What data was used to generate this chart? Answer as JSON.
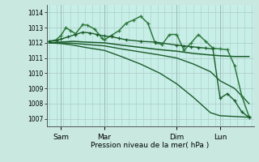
{
  "xlabel": "Pression niveau de la mer( hPa )",
  "bg_color": "#c8e8e0",
  "plot_bg_color": "#c8eee8",
  "grid_color": "#aaccc4",
  "ylim": [
    1006.5,
    1014.5
  ],
  "xlim": [
    -1,
    85
  ],
  "yticks": [
    1007,
    1008,
    1009,
    1010,
    1011,
    1012,
    1013,
    1014
  ],
  "xtick_positions": [
    5,
    23,
    53,
    71
  ],
  "xtick_labels": [
    "Sam",
    "Mar",
    "Dim",
    "Lun"
  ],
  "vline_positions": [
    5,
    23,
    53,
    71
  ],
  "series": [
    {
      "x": [
        0,
        5,
        10,
        15,
        23,
        30,
        38,
        46,
        53,
        60,
        67,
        71,
        77,
        83
      ],
      "y": [
        1012.0,
        1012.05,
        1012.1,
        1012.05,
        1012.0,
        1011.85,
        1011.7,
        1011.55,
        1011.45,
        1011.3,
        1011.2,
        1011.15,
        1011.1,
        1011.1
      ],
      "color": "#1a5c2a",
      "lw": 1.1,
      "marker": null
    },
    {
      "x": [
        0,
        5,
        10,
        15,
        23,
        30,
        38,
        46,
        53,
        60,
        67,
        71,
        77,
        83
      ],
      "y": [
        1012.0,
        1012.0,
        1011.97,
        1011.9,
        1011.8,
        1011.6,
        1011.4,
        1011.2,
        1011.0,
        1010.6,
        1010.1,
        1009.5,
        1009.0,
        1008.0
      ],
      "color": "#1a5c2a",
      "lw": 1.0,
      "marker": null
    },
    {
      "x": [
        0,
        5,
        10,
        15,
        23,
        30,
        38,
        46,
        53,
        60,
        67,
        71,
        77,
        83
      ],
      "y": [
        1012.0,
        1011.95,
        1011.85,
        1011.7,
        1011.5,
        1011.1,
        1010.6,
        1010.0,
        1009.3,
        1008.4,
        1007.4,
        1007.2,
        1007.15,
        1007.1
      ],
      "color": "#1a5c2a",
      "lw": 1.0,
      "marker": null
    },
    {
      "x": [
        0,
        3,
        5,
        7,
        9,
        11,
        14,
        16,
        19,
        22,
        23,
        26,
        29,
        32,
        35,
        38,
        41,
        44,
        47,
        50,
        53,
        56,
        59,
        62,
        65,
        68,
        71,
        74,
        77,
        80,
        83
      ],
      "y": [
        1012.1,
        1012.2,
        1012.5,
        1013.0,
        1012.8,
        1012.6,
        1013.2,
        1013.15,
        1012.9,
        1012.3,
        1012.2,
        1012.5,
        1012.8,
        1013.3,
        1013.5,
        1013.75,
        1013.3,
        1012.0,
        1011.9,
        1012.55,
        1012.55,
        1011.5,
        1012.0,
        1012.55,
        1012.1,
        1011.65,
        1011.6,
        1011.55,
        1010.5,
        1008.5,
        1007.15
      ],
      "color": "#2d7a3c",
      "lw": 1.1,
      "marker": "+"
    },
    {
      "x": [
        0,
        3,
        5,
        8,
        11,
        14,
        17,
        20,
        23,
        26,
        29,
        32,
        38,
        44,
        53,
        56,
        59,
        62,
        65,
        68,
        71,
        74,
        77,
        80,
        83
      ],
      "y": [
        1012.1,
        1012.15,
        1012.25,
        1012.4,
        1012.55,
        1012.7,
        1012.65,
        1012.55,
        1012.45,
        1012.4,
        1012.3,
        1012.2,
        1012.1,
        1012.05,
        1011.85,
        1011.8,
        1011.75,
        1011.7,
        1011.65,
        1011.6,
        1008.35,
        1008.65,
        1008.2,
        1007.45,
        1007.1
      ],
      "color": "#1a5c2a",
      "lw": 1.0,
      "marker": "+"
    }
  ]
}
